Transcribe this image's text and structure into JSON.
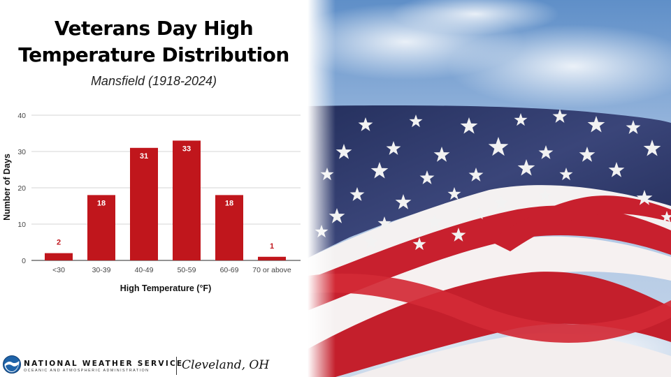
{
  "title_line1": "Veterans Day High",
  "title_line2": "Temperature Distribution",
  "subtitle": "Mansfield (1918-2024)",
  "chart_data": {
    "type": "bar",
    "categories": [
      "<30",
      "30-39",
      "40-49",
      "50-59",
      "60-69",
      "70 or above"
    ],
    "values": [
      2,
      18,
      31,
      33,
      18,
      1
    ],
    "xlabel": "High Temperature (°F)",
    "ylabel": "Number of Days",
    "ylim": [
      0,
      40
    ],
    "yticks": [
      0,
      10,
      20,
      30,
      40
    ],
    "grid": true,
    "bar_color": "#c0161c",
    "label_color": "#c0161c",
    "inside_label_color": "#ffffff"
  },
  "footer": {
    "agency": "NATIONAL WEATHER SERVICE",
    "agency_sub": "OCEANIC AND ATMOSPHERIC ADMINISTRATION",
    "office": "Cleveland, OH"
  },
  "colors": {
    "flag_red": "#c8202e",
    "flag_blue": "#2b3566",
    "sky": "#a9c3e1"
  }
}
